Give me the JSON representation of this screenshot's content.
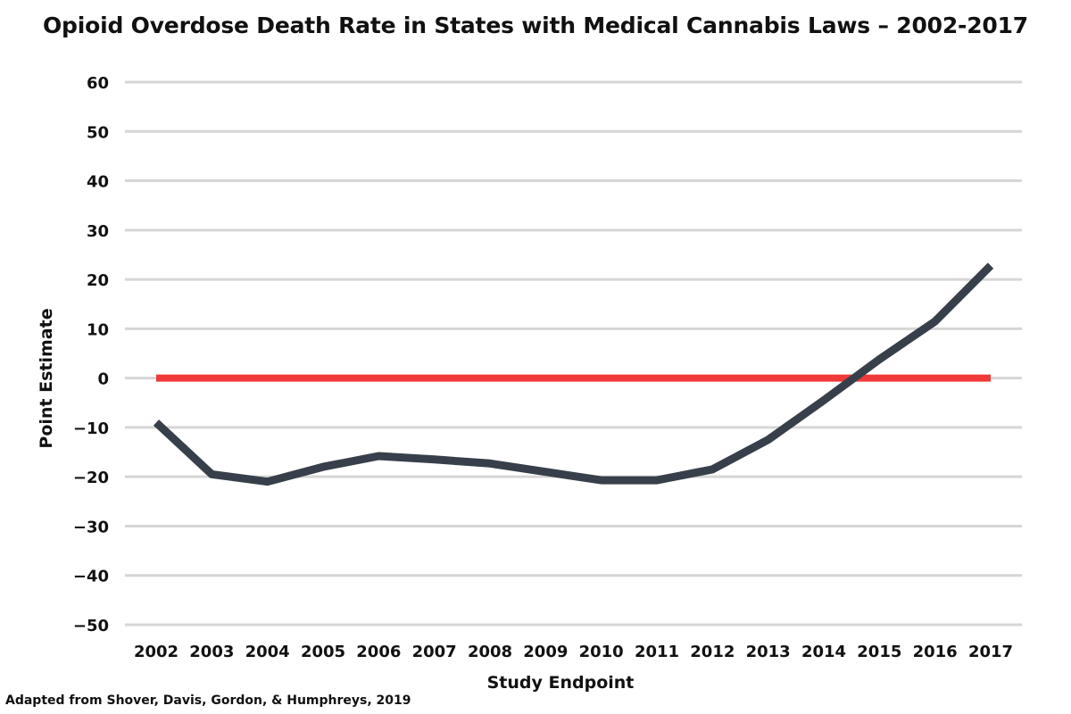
{
  "chart_data": {
    "type": "line",
    "title": "Opioid Overdose Death Rate in States with Medical Cannabis Laws – 2002-2017",
    "xlabel": "Study Endpoint",
    "ylabel": "Point Estimate",
    "ylim": [
      -50,
      60
    ],
    "yticks": [
      "60",
      "50",
      "40",
      "30",
      "20",
      "10",
      "0",
      "−10",
      "−20",
      "−30",
      "−40",
      "−50"
    ],
    "ytick_values": [
      60,
      50,
      40,
      30,
      20,
      10,
      0,
      -10,
      -20,
      -30,
      -40,
      -50
    ],
    "categories": [
      "2002",
      "2003",
      "2004",
      "2005",
      "2006",
      "2007",
      "2008",
      "2009",
      "2010",
      "2011",
      "2012",
      "2013",
      "2014",
      "2015",
      "2016",
      "2017"
    ],
    "series": [
      {
        "values": [
          -9,
          -19.5,
          -21,
          -18,
          -15.8,
          -16.5,
          -17.3,
          -19,
          -20.7,
          -20.7,
          -18.5,
          -12.5,
          -4.5,
          3.8,
          11.5,
          22.8
        ],
        "color": "#37404a"
      }
    ],
    "reference_line": {
      "value": 0,
      "color": "#f03a3a"
    },
    "grid": true,
    "gridColor": "#d6d6d6"
  },
  "footer": {
    "source": "Adapted from Shover, Davis, Gordon, & Humphreys, 2019"
  }
}
